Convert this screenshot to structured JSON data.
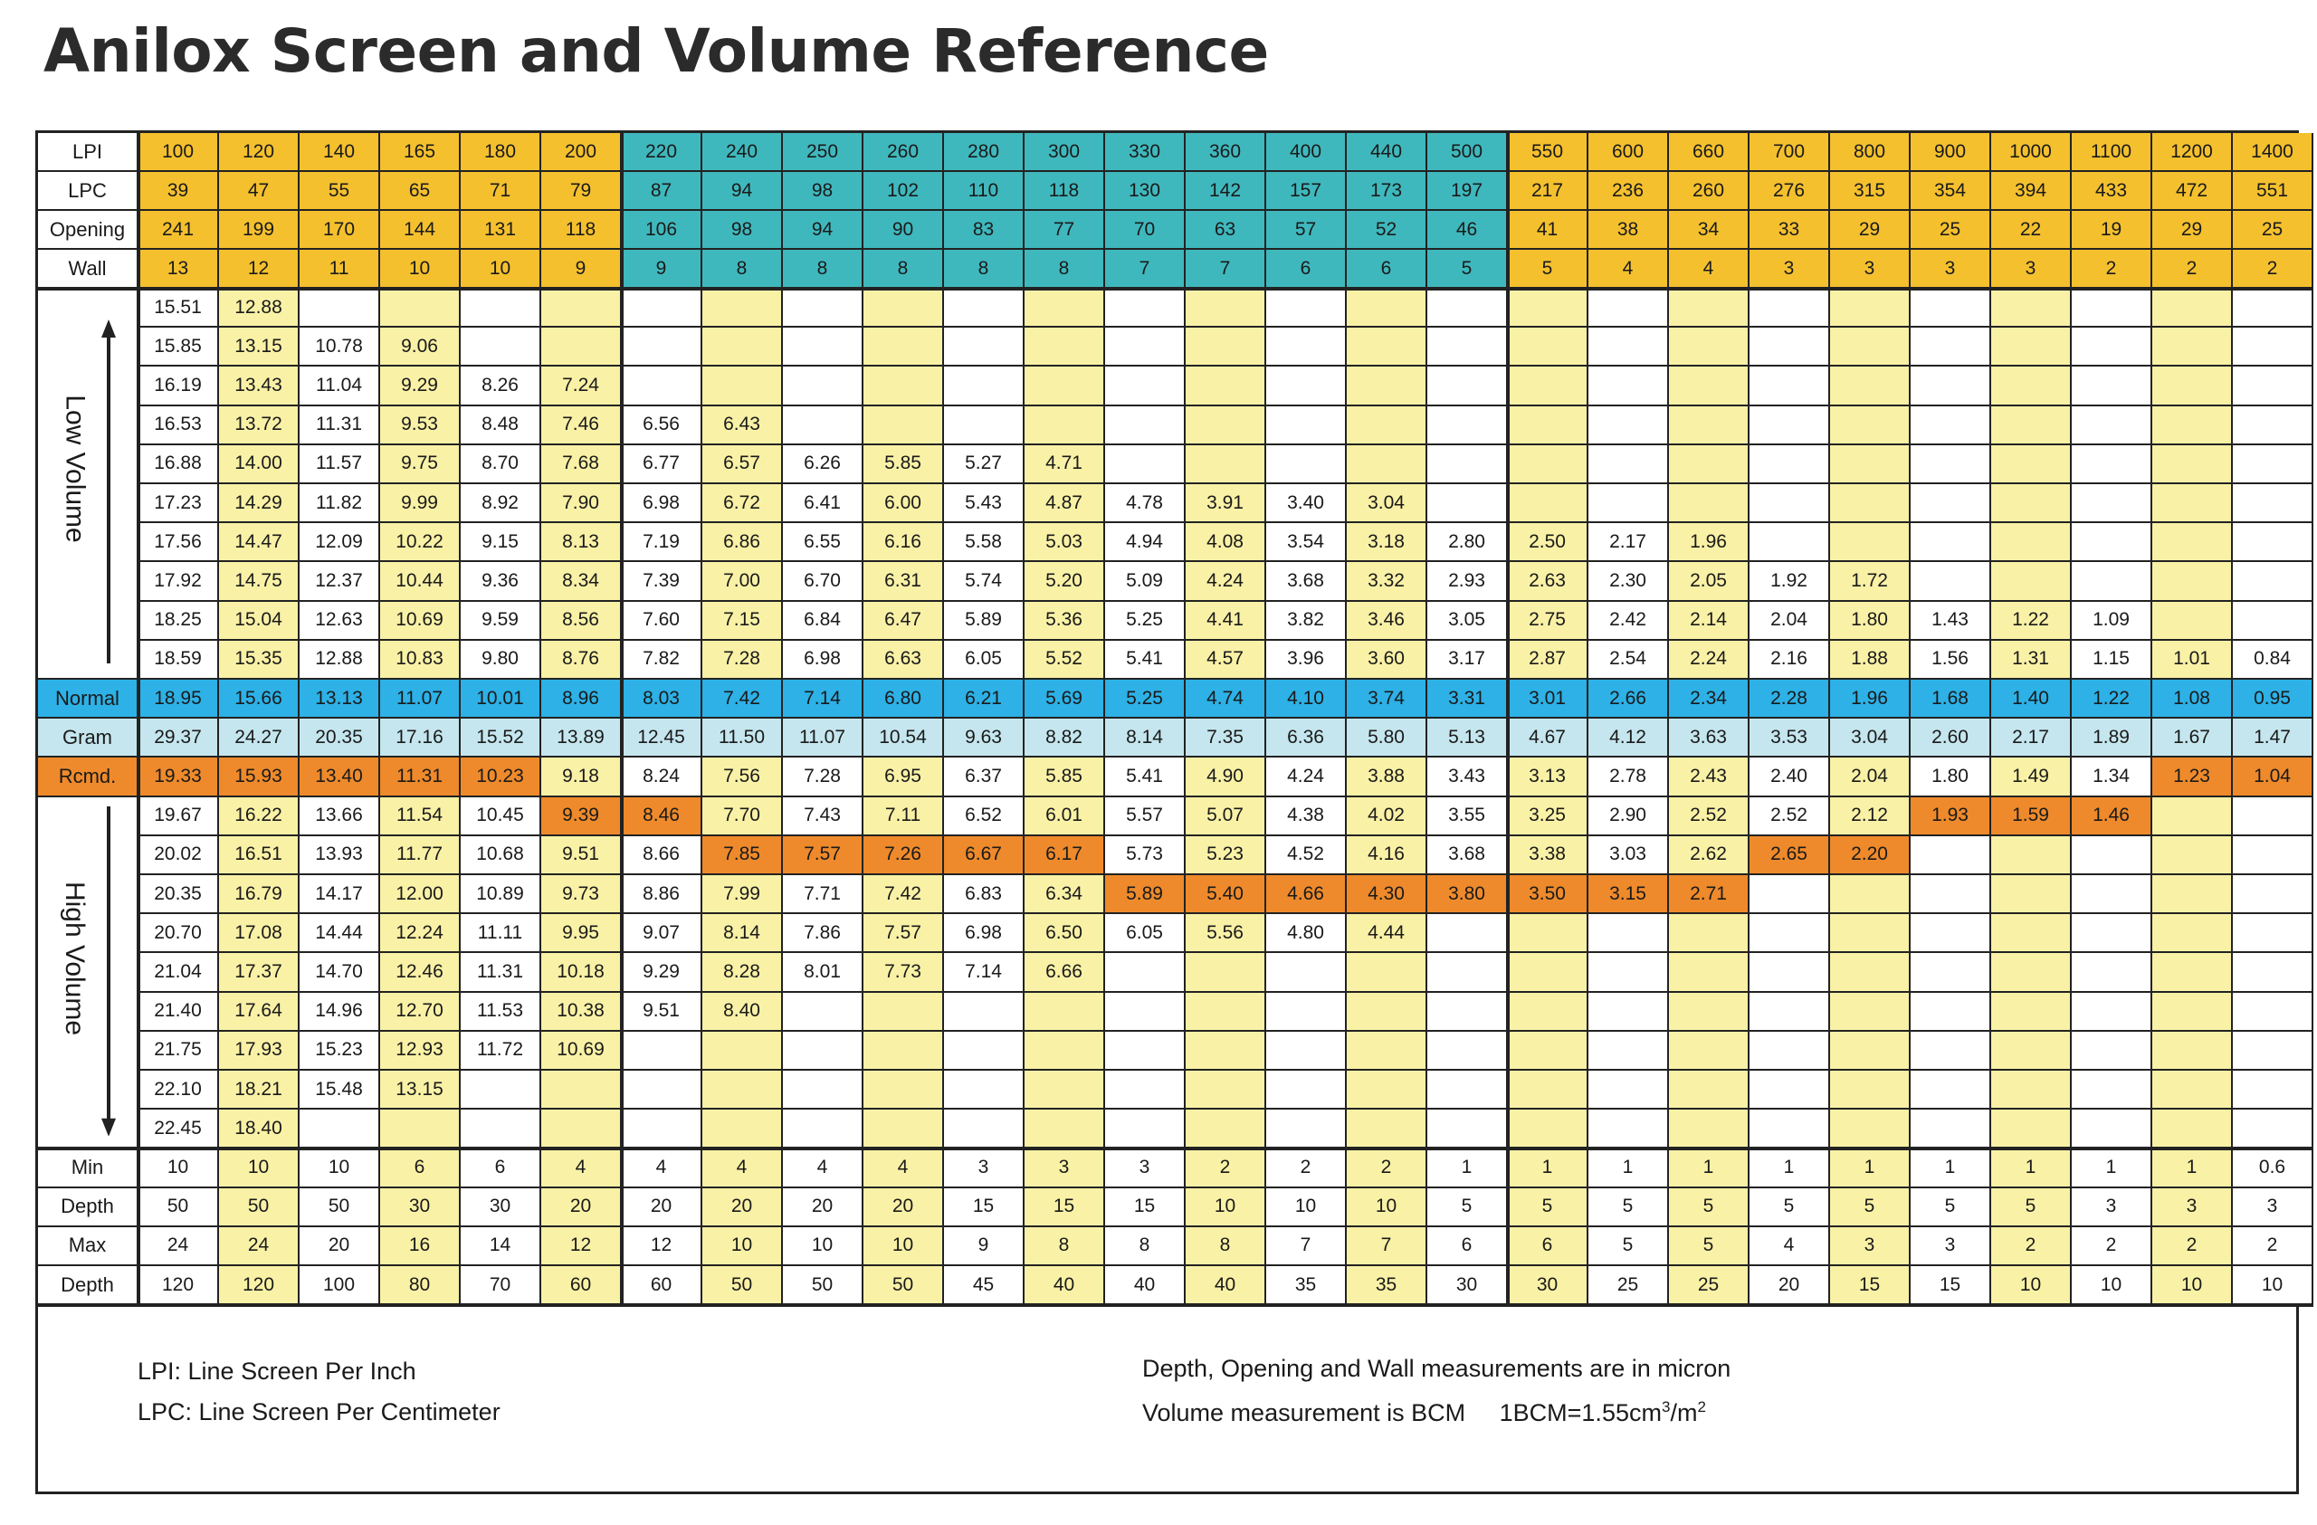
{
  "title": "Anilox Screen and Volume Reference",
  "colors": {
    "gold": "#F4C02E",
    "teal": "#3FB8BD",
    "yellow_light": "#F9F1A6",
    "normal_blue": "#2DB1E6",
    "gram_blue": "#C5E6EE",
    "orange": "#EE8A2B",
    "white": "#FFFFFF"
  },
  "labels": {
    "header": [
      "LPI",
      "LPC",
      "Opening",
      "Wall"
    ],
    "low_volume": "Low Volume",
    "normal": "Normal",
    "gram": "Gram",
    "rcmd": "Rcmd.",
    "high_volume": "High Volume",
    "footer": [
      "Min",
      "Depth",
      "Max",
      "Depth"
    ]
  },
  "header_rows": [
    [
      "100",
      "120",
      "140",
      "165",
      "180",
      "200",
      "220",
      "240",
      "250",
      "260",
      "280",
      "300",
      "330",
      "360",
      "400",
      "440",
      "500",
      "550",
      "600",
      "660",
      "700",
      "800",
      "900",
      "1000",
      "1100",
      "1200",
      "1400"
    ],
    [
      "39",
      "47",
      "55",
      "65",
      "71",
      "79",
      "87",
      "94",
      "98",
      "102",
      "110",
      "118",
      "130",
      "142",
      "157",
      "173",
      "197",
      "217",
      "236",
      "260",
      "276",
      "315",
      "354",
      "394",
      "433",
      "472",
      "551"
    ],
    [
      "241",
      "199",
      "170",
      "144",
      "131",
      "118",
      "106",
      "98",
      "94",
      "90",
      "83",
      "77",
      "70",
      "63",
      "57",
      "52",
      "46",
      "41",
      "38",
      "34",
      "33",
      "29",
      "25",
      "22",
      "19",
      "29",
      "25"
    ],
    [
      "13",
      "12",
      "11",
      "10",
      "10",
      "9",
      "9",
      "8",
      "8",
      "8",
      "8",
      "8",
      "7",
      "7",
      "6",
      "6",
      "5",
      "5",
      "4",
      "4",
      "3",
      "3",
      "3",
      "3",
      "2",
      "2",
      "2"
    ]
  ],
  "low_rows": [
    [
      "15.51",
      "12.88",
      "",
      "",
      "",
      "",
      "",
      "",
      "",
      "",
      "",
      "",
      "",
      "",
      "",
      "",
      "",
      "",
      "",
      "",
      "",
      "",
      "",
      "",
      "",
      "",
      ""
    ],
    [
      "15.85",
      "13.15",
      "10.78",
      "9.06",
      "",
      "",
      "",
      "",
      "",
      "",
      "",
      "",
      "",
      "",
      "",
      "",
      "",
      "",
      "",
      "",
      "",
      "",
      "",
      "",
      "",
      "",
      ""
    ],
    [
      "16.19",
      "13.43",
      "11.04",
      "9.29",
      "8.26",
      "7.24",
      "",
      "",
      "",
      "",
      "",
      "",
      "",
      "",
      "",
      "",
      "",
      "",
      "",
      "",
      "",
      "",
      "",
      "",
      "",
      "",
      ""
    ],
    [
      "16.53",
      "13.72",
      "11.31",
      "9.53",
      "8.48",
      "7.46",
      "6.56",
      "6.43",
      "",
      "",
      "",
      "",
      "",
      "",
      "",
      "",
      "",
      "",
      "",
      "",
      "",
      "",
      "",
      "",
      "",
      "",
      ""
    ],
    [
      "16.88",
      "14.00",
      "11.57",
      "9.75",
      "8.70",
      "7.68",
      "6.77",
      "6.57",
      "6.26",
      "5.85",
      "5.27",
      "4.71",
      "",
      "",
      "",
      "",
      "",
      "",
      "",
      "",
      "",
      "",
      "",
      "",
      "",
      "",
      ""
    ],
    [
      "17.23",
      "14.29",
      "11.82",
      "9.99",
      "8.92",
      "7.90",
      "6.98",
      "6.72",
      "6.41",
      "6.00",
      "5.43",
      "4.87",
      "4.78",
      "3.91",
      "3.40",
      "3.04",
      "",
      "",
      "",
      "",
      "",
      "",
      "",
      "",
      "",
      "",
      ""
    ],
    [
      "17.56",
      "14.47",
      "12.09",
      "10.22",
      "9.15",
      "8.13",
      "7.19",
      "6.86",
      "6.55",
      "6.16",
      "5.58",
      "5.03",
      "4.94",
      "4.08",
      "3.54",
      "3.18",
      "2.80",
      "2.50",
      "2.17",
      "1.96",
      "",
      "",
      "",
      "",
      "",
      "",
      ""
    ],
    [
      "17.92",
      "14.75",
      "12.37",
      "10.44",
      "9.36",
      "8.34",
      "7.39",
      "7.00",
      "6.70",
      "6.31",
      "5.74",
      "5.20",
      "5.09",
      "4.24",
      "3.68",
      "3.32",
      "2.93",
      "2.63",
      "2.30",
      "2.05",
      "1.92",
      "1.72",
      "",
      "",
      "",
      "",
      ""
    ],
    [
      "18.25",
      "15.04",
      "12.63",
      "10.69",
      "9.59",
      "8.56",
      "7.60",
      "7.15",
      "6.84",
      "6.47",
      "5.89",
      "5.36",
      "5.25",
      "4.41",
      "3.82",
      "3.46",
      "3.05",
      "2.75",
      "2.42",
      "2.14",
      "2.04",
      "1.80",
      "1.43",
      "1.22",
      "1.09",
      "",
      ""
    ],
    [
      "18.59",
      "15.35",
      "12.88",
      "10.83",
      "9.80",
      "8.76",
      "7.82",
      "7.28",
      "6.98",
      "6.63",
      "6.05",
      "5.52",
      "5.41",
      "4.57",
      "3.96",
      "3.60",
      "3.17",
      "2.87",
      "2.54",
      "2.24",
      "2.16",
      "1.88",
      "1.56",
      "1.31",
      "1.15",
      "1.01",
      "0.84"
    ]
  ],
  "normal_row": [
    "18.95",
    "15.66",
    "13.13",
    "11.07",
    "10.01",
    "8.96",
    "8.03",
    "7.42",
    "7.14",
    "6.80",
    "6.21",
    "5.69",
    "5.25",
    "4.74",
    "4.10",
    "3.74",
    "3.31",
    "3.01",
    "2.66",
    "2.34",
    "2.28",
    "1.96",
    "1.68",
    "1.40",
    "1.22",
    "1.08",
    "0.95"
  ],
  "gram_row": [
    "29.37",
    "24.27",
    "20.35",
    "17.16",
    "15.52",
    "13.89",
    "12.45",
    "11.50",
    "11.07",
    "10.54",
    "9.63",
    "8.82",
    "8.14",
    "7.35",
    "6.36",
    "5.80",
    "5.13",
    "4.67",
    "4.12",
    "3.63",
    "3.53",
    "3.04",
    "2.60",
    "2.17",
    "1.89",
    "1.67",
    "1.47"
  ],
  "rcmd_row": [
    "19.33",
    "15.93",
    "13.40",
    "11.31",
    "10.23",
    "9.18",
    "8.24",
    "7.56",
    "7.28",
    "6.95",
    "6.37",
    "5.85",
    "5.41",
    "4.90",
    "4.24",
    "3.88",
    "3.43",
    "3.13",
    "2.78",
    "2.43",
    "2.40",
    "2.04",
    "1.80",
    "1.49",
    "1.34",
    "1.23",
    "1.04"
  ],
  "high_rows": [
    [
      "19.67",
      "16.22",
      "13.66",
      "11.54",
      "10.45",
      "9.39",
      "8.46",
      "7.70",
      "7.43",
      "7.11",
      "6.52",
      "6.01",
      "5.57",
      "5.07",
      "4.38",
      "4.02",
      "3.55",
      "3.25",
      "2.90",
      "2.52",
      "2.52",
      "2.12",
      "1.93",
      "1.59",
      "1.46",
      "",
      ""
    ],
    [
      "20.02",
      "16.51",
      "13.93",
      "11.77",
      "10.68",
      "9.51",
      "8.66",
      "7.85",
      "7.57",
      "7.26",
      "6.67",
      "6.17",
      "5.73",
      "5.23",
      "4.52",
      "4.16",
      "3.68",
      "3.38",
      "3.03",
      "2.62",
      "2.65",
      "2.20",
      "",
      "",
      "",
      "",
      ""
    ],
    [
      "20.35",
      "16.79",
      "14.17",
      "12.00",
      "10.89",
      "9.73",
      "8.86",
      "7.99",
      "7.71",
      "7.42",
      "6.83",
      "6.34",
      "5.89",
      "5.40",
      "4.66",
      "4.30",
      "3.80",
      "3.50",
      "3.15",
      "2.71",
      "",
      "",
      "",
      "",
      "",
      "",
      ""
    ],
    [
      "20.70",
      "17.08",
      "14.44",
      "12.24",
      "11.11",
      "9.95",
      "9.07",
      "8.14",
      "7.86",
      "7.57",
      "6.98",
      "6.50",
      "6.05",
      "5.56",
      "4.80",
      "4.44",
      "",
      "",
      "",
      "",
      "",
      "",
      "",
      "",
      "",
      "",
      ""
    ],
    [
      "21.04",
      "17.37",
      "14.70",
      "12.46",
      "11.31",
      "10.18",
      "9.29",
      "8.28",
      "8.01",
      "7.73",
      "7.14",
      "6.66",
      "",
      "",
      "",
      "",
      "",
      "",
      "",
      "",
      "",
      "",
      "",
      "",
      "",
      "",
      ""
    ],
    [
      "21.40",
      "17.64",
      "14.96",
      "12.70",
      "11.53",
      "10.38",
      "9.51",
      "8.40",
      "",
      "",
      "",
      "",
      "",
      "",
      "",
      "",
      "",
      "",
      "",
      "",
      "",
      "",
      "",
      "",
      "",
      "",
      ""
    ],
    [
      "21.75",
      "17.93",
      "15.23",
      "12.93",
      "11.72",
      "10.69",
      "",
      "",
      "",
      "",
      "",
      "",
      "",
      "",
      "",
      "",
      "",
      "",
      "",
      "",
      "",
      "",
      "",
      "",
      "",
      "",
      ""
    ],
    [
      "22.10",
      "18.21",
      "15.48",
      "13.15",
      "",
      "",
      "",
      "",
      "",
      "",
      "",
      "",
      "",
      "",
      "",
      "",
      "",
      "",
      "",
      "",
      "",
      "",
      "",
      "",
      "",
      "",
      ""
    ],
    [
      "22.45",
      "18.40",
      "",
      "",
      "",
      "",
      "",
      "",
      "",
      "",
      "",
      "",
      "",
      "",
      "",
      "",
      "",
      "",
      "",
      "",
      "",
      "",
      "",
      "",
      "",
      "",
      ""
    ]
  ],
  "footer_rows": [
    [
      "10",
      "10",
      "10",
      "6",
      "6",
      "4",
      "4",
      "4",
      "4",
      "4",
      "3",
      "3",
      "3",
      "2",
      "2",
      "2",
      "1",
      "1",
      "1",
      "1",
      "1",
      "1",
      "1",
      "1",
      "1",
      "1",
      "0.6"
    ],
    [
      "50",
      "50",
      "50",
      "30",
      "30",
      "20",
      "20",
      "20",
      "20",
      "20",
      "15",
      "15",
      "15",
      "10",
      "10",
      "10",
      "5",
      "5",
      "5",
      "5",
      "5",
      "5",
      "5",
      "5",
      "3",
      "3",
      "3"
    ],
    [
      "24",
      "24",
      "20",
      "16",
      "14",
      "12",
      "12",
      "10",
      "10",
      "10",
      "9",
      "8",
      "8",
      "8",
      "7",
      "7",
      "6",
      "6",
      "5",
      "5",
      "4",
      "3",
      "3",
      "2",
      "2",
      "2",
      "2"
    ],
    [
      "120",
      "120",
      "100",
      "80",
      "70",
      "60",
      "60",
      "50",
      "50",
      "50",
      "45",
      "40",
      "40",
      "40",
      "35",
      "35",
      "30",
      "30",
      "25",
      "25",
      "20",
      "15",
      "15",
      "10",
      "10",
      "10",
      "10"
    ]
  ],
  "legend": {
    "lpi": "LPI:  Line Screen Per Inch",
    "lpc": "LPC:  Line Screen Per Centimeter",
    "measure": "Depth, Opening and Wall measurements are in micron",
    "volume_prefix": "Volume measurement is BCM     1BCM=1.55cm",
    "volume_sup1": "3",
    "volume_mid": "/m",
    "volume_sup2": "2"
  }
}
